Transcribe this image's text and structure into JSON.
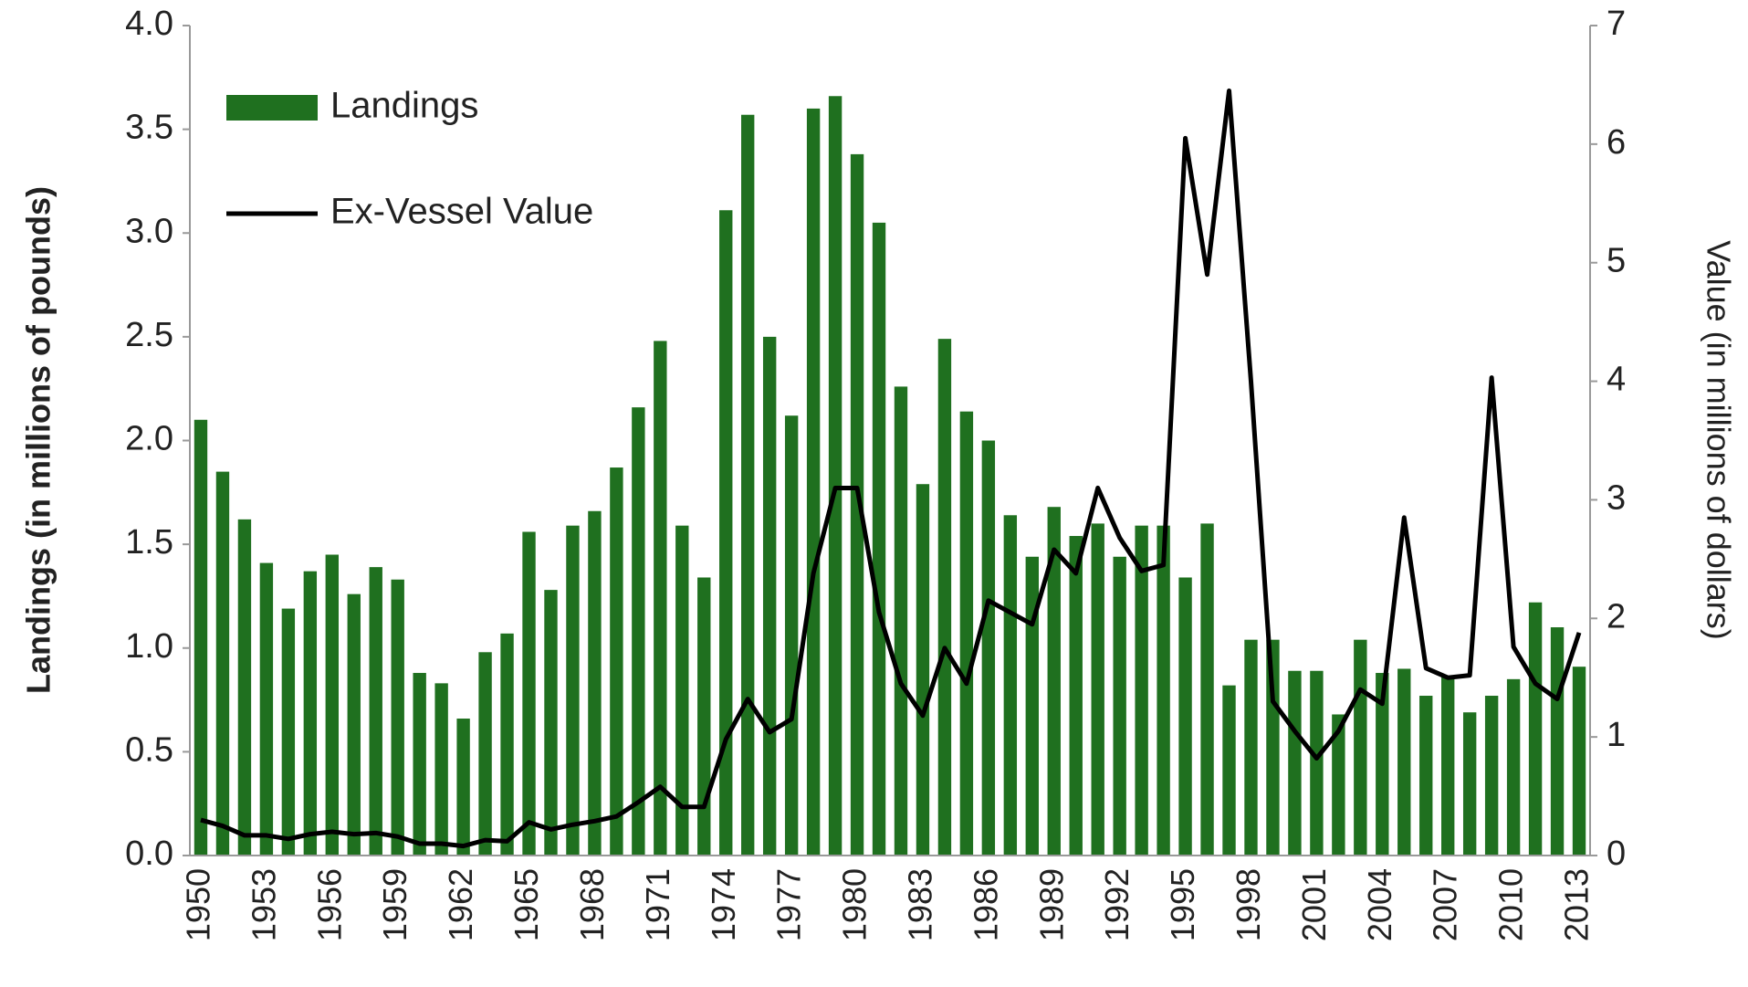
{
  "chart_data": {
    "type": "bar",
    "ylabel": "Landings (in millions of pounds)",
    "y2label": "Value (in millions of dollars)",
    "legend": "upper left",
    "categories": [
      "1950",
      null,
      null,
      "1953",
      null,
      null,
      "1956",
      null,
      null,
      "1959",
      null,
      null,
      "1962",
      null,
      null,
      "1965",
      null,
      null,
      "1968",
      null,
      null,
      "1971",
      null,
      null,
      "1974",
      null,
      null,
      "1977",
      null,
      null,
      "1980",
      null,
      null,
      "1983",
      null,
      null,
      "1986",
      null,
      null,
      "1989",
      null,
      null,
      "1992",
      null,
      null,
      "1995",
      null,
      null,
      "1998",
      null,
      null,
      "2001",
      null,
      null,
      "2004",
      null,
      null,
      "2007",
      null,
      null,
      "2010",
      null,
      null,
      "2013"
    ],
    "series": [
      {
        "name": "Landings",
        "type": "bar",
        "color": "#1f701f",
        "values": [
          2.1,
          1.85,
          1.62,
          1.41,
          1.19,
          1.37,
          1.45,
          1.26,
          1.39,
          1.33,
          0.88,
          0.83,
          0.66,
          0.98,
          1.07,
          1.56,
          1.28,
          1.59,
          1.66,
          1.87,
          2.16,
          2.48,
          1.59,
          1.34,
          3.11,
          3.57,
          2.5,
          2.12,
          3.6,
          3.66,
          3.38,
          3.05,
          2.26,
          1.79,
          2.49,
          2.14,
          2.0,
          1.64,
          1.44,
          1.68,
          1.54,
          1.6,
          1.44,
          1.59,
          1.59,
          1.34,
          1.6,
          0.82,
          1.04,
          1.04,
          0.89,
          0.89,
          0.68,
          1.04,
          0.88,
          0.9,
          0.77,
          0.86,
          0.69,
          0.77,
          0.85,
          1.22,
          1.1,
          0.91
        ]
      },
      {
        "name": "Ex-Vessel Value",
        "type": "line",
        "axis": "y2",
        "color": "#000000",
        "values": [
          0.3,
          0.25,
          0.17,
          0.17,
          0.14,
          0.18,
          0.2,
          0.18,
          0.19,
          0.16,
          0.1,
          0.1,
          0.08,
          0.13,
          0.12,
          0.28,
          0.22,
          0.26,
          0.29,
          0.33,
          0.45,
          0.58,
          0.41,
          0.41,
          0.98,
          1.32,
          1.04,
          1.15,
          2.38,
          3.1,
          3.1,
          2.05,
          1.45,
          1.18,
          1.75,
          1.45,
          2.15,
          2.05,
          1.95,
          2.58,
          2.38,
          3.1,
          2.68,
          2.4,
          2.45,
          6.05,
          4.9,
          6.45,
          4.0,
          1.3,
          1.05,
          0.82,
          1.05,
          1.4,
          1.28,
          2.85,
          1.58,
          1.5,
          1.52,
          4.03,
          1.76,
          1.45,
          1.32,
          1.88
        ]
      }
    ],
    "ylim": [
      0,
      4
    ],
    "yticks": [
      {
        "value": 0,
        "label": "0.0"
      },
      0.5,
      {
        "value": 1,
        "label": "1.0"
      },
      1.5,
      {
        "value": 2,
        "label": "2.0"
      },
      2.5,
      {
        "value": 3,
        "label": "3.0"
      },
      3.5,
      {
        "value": 4,
        "label": "4.0"
      }
    ],
    "y2lim": [
      0,
      7
    ],
    "y2ticks": [
      0,
      1,
      2,
      3,
      4,
      5,
      6,
      7
    ]
  }
}
